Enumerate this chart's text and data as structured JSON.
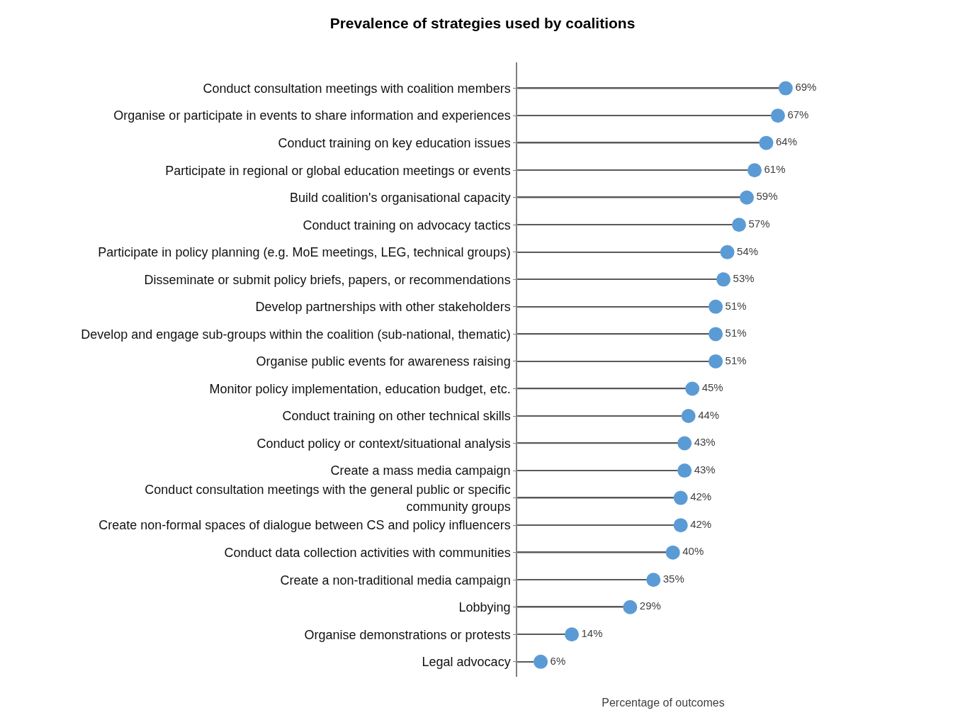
{
  "chart_data": {
    "type": "lollipop",
    "orientation": "horizontal",
    "title": "Prevalence of strategies used by coalitions",
    "xlabel": "Percentage of outcomes",
    "categories": [
      "Conduct consultation meetings with coalition members",
      "Organise or participate in events to share information and experiences",
      "Conduct training on key education issues",
      "Participate in regional or global education meetings or events",
      "Build coalition's organisational capacity",
      "Conduct training on advocacy tactics",
      "Participate in policy planning (e.g. MoE meetings, LEG, technical groups)",
      "Disseminate or submit policy briefs, papers, or recommendations",
      "Develop partnerships with other stakeholders",
      "Develop and engage sub-groups within the coalition (sub-national, thematic)",
      "Organise public events for awareness raising",
      "Monitor policy implementation, education budget, etc.",
      "Conduct training on other technical skills",
      "Conduct policy or context/situational analysis",
      "Create a mass media campaign",
      "Conduct consultation meetings with the general public or specific community groups",
      "Create non-formal spaces of dialogue between CS and policy influencers",
      "Conduct data collection activities with communities",
      "Create a non-traditional media campaign",
      "Lobbying",
      "Organise demonstrations or protests",
      "Legal advocacy"
    ],
    "values": [
      69,
      67,
      64,
      61,
      59,
      57,
      54,
      53,
      51,
      51,
      51,
      45,
      44,
      43,
      43,
      42,
      42,
      40,
      35,
      29,
      14,
      6
    ],
    "value_labels": [
      "69%",
      "67%",
      "64%",
      "61%",
      "59%",
      "57%",
      "54%",
      "53%",
      "51%",
      "51%",
      "51%",
      "45%",
      "44%",
      "43%",
      "43%",
      "42%",
      "42%",
      "40%",
      "35%",
      "29%",
      "14%",
      "6%"
    ],
    "color": "#5b9bd5",
    "tick_labels": "y",
    "marker": "circle"
  }
}
